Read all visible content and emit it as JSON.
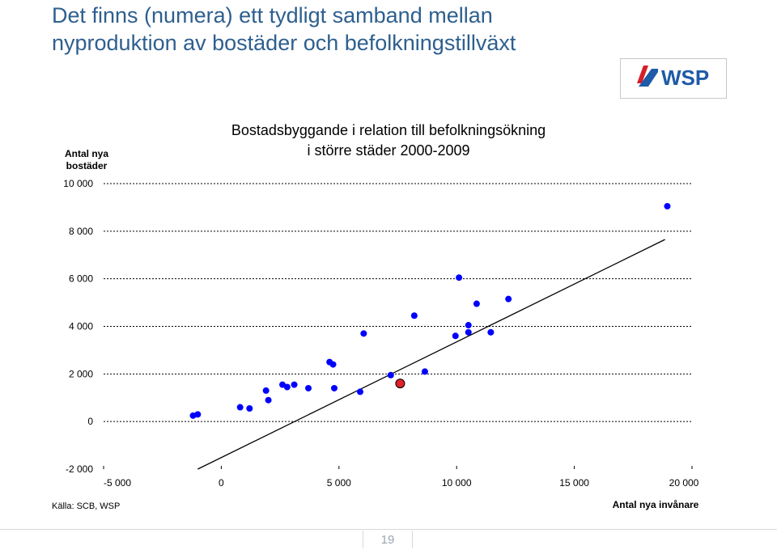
{
  "slide": {
    "title_line1": "Det finns (numera) ett tydligt samband mellan",
    "title_line2": "nyproduktion av bostäder och befolkningstillväxt",
    "source": "Källa: SCB, WSP",
    "page_number": "19",
    "logo_text": "WSP",
    "title_color": "#2e5f8f",
    "logo_red": "#d32027",
    "logo_blue": "#1e5aa8"
  },
  "chart_data": {
    "type": "scatter",
    "title_line1": "Bostadsbyggande i relation till befolkningsökning",
    "title_line2": "i större städer 2000-2009",
    "xlabel": "Antal nya invånare",
    "ylabel_line1": "Antal nya",
    "ylabel_line2": "bostäder",
    "xlim": [
      -5000,
      20000
    ],
    "ylim": [
      -2000,
      10000
    ],
    "x_ticks": [
      -5000,
      0,
      5000,
      10000,
      15000,
      20000
    ],
    "x_tick_labels": [
      "-5 000",
      "0",
      "5 000",
      "10 000",
      "15 000",
      "20 000"
    ],
    "y_ticks": [
      -2000,
      0,
      2000,
      4000,
      6000,
      8000,
      10000
    ],
    "y_tick_labels": [
      "-2 000",
      "0",
      "2 000",
      "4 000",
      "6 000",
      "8 000",
      "10 000"
    ],
    "grid": "horizontal-dashed",
    "point_color": "#0000ff",
    "highlight_color": "#e0202a",
    "points": [
      {
        "x": -1200,
        "y": 250
      },
      {
        "x": -1000,
        "y": 300
      },
      {
        "x": 800,
        "y": 600
      },
      {
        "x": 1200,
        "y": 550
      },
      {
        "x": 1900,
        "y": 1300
      },
      {
        "x": 2000,
        "y": 900
      },
      {
        "x": 2600,
        "y": 1550
      },
      {
        "x": 2800,
        "y": 1450
      },
      {
        "x": 3100,
        "y": 1550
      },
      {
        "x": 3700,
        "y": 1400
      },
      {
        "x": 4600,
        "y": 2500
      },
      {
        "x": 4750,
        "y": 2400
      },
      {
        "x": 4800,
        "y": 1400
      },
      {
        "x": 5900,
        "y": 1250
      },
      {
        "x": 6050,
        "y": 3700
      },
      {
        "x": 7200,
        "y": 1950
      },
      {
        "x": 7600,
        "y": 1600,
        "highlight": true
      },
      {
        "x": 8200,
        "y": 4450
      },
      {
        "x": 8650,
        "y": 2100
      },
      {
        "x": 9950,
        "y": 3600
      },
      {
        "x": 10100,
        "y": 6050
      },
      {
        "x": 10500,
        "y": 4050
      },
      {
        "x": 10500,
        "y": 3750
      },
      {
        "x": 10850,
        "y": 4950
      },
      {
        "x": 11450,
        "y": 3750
      },
      {
        "x": 12200,
        "y": 5150
      },
      {
        "x": 18950,
        "y": 9050
      }
    ],
    "trendline": {
      "x": [
        -1000,
        18850
      ],
      "y": [
        -2000,
        7650
      ]
    }
  }
}
